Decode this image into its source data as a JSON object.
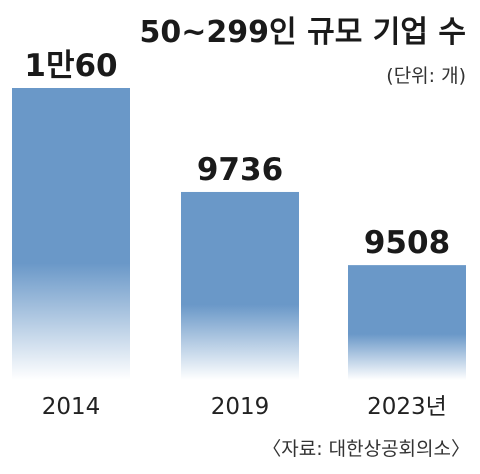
{
  "chart_data": {
    "type": "bar",
    "title": "50~299인 규모 기업 수",
    "unit_note": "(단위: 개)",
    "source": "〈자료: 대한상공회의소〉",
    "categories": [
      "2014",
      "2019",
      "2023년"
    ],
    "values": [
      10060,
      9736,
      9508
    ],
    "data_labels": [
      "1만60",
      "9736",
      "9508"
    ],
    "ylim": [
      9150,
      10060
    ],
    "y_axis_shown": false,
    "grid": false,
    "colors": {
      "bar": "#6a98c8",
      "bar_fade": "#ffffff"
    }
  }
}
